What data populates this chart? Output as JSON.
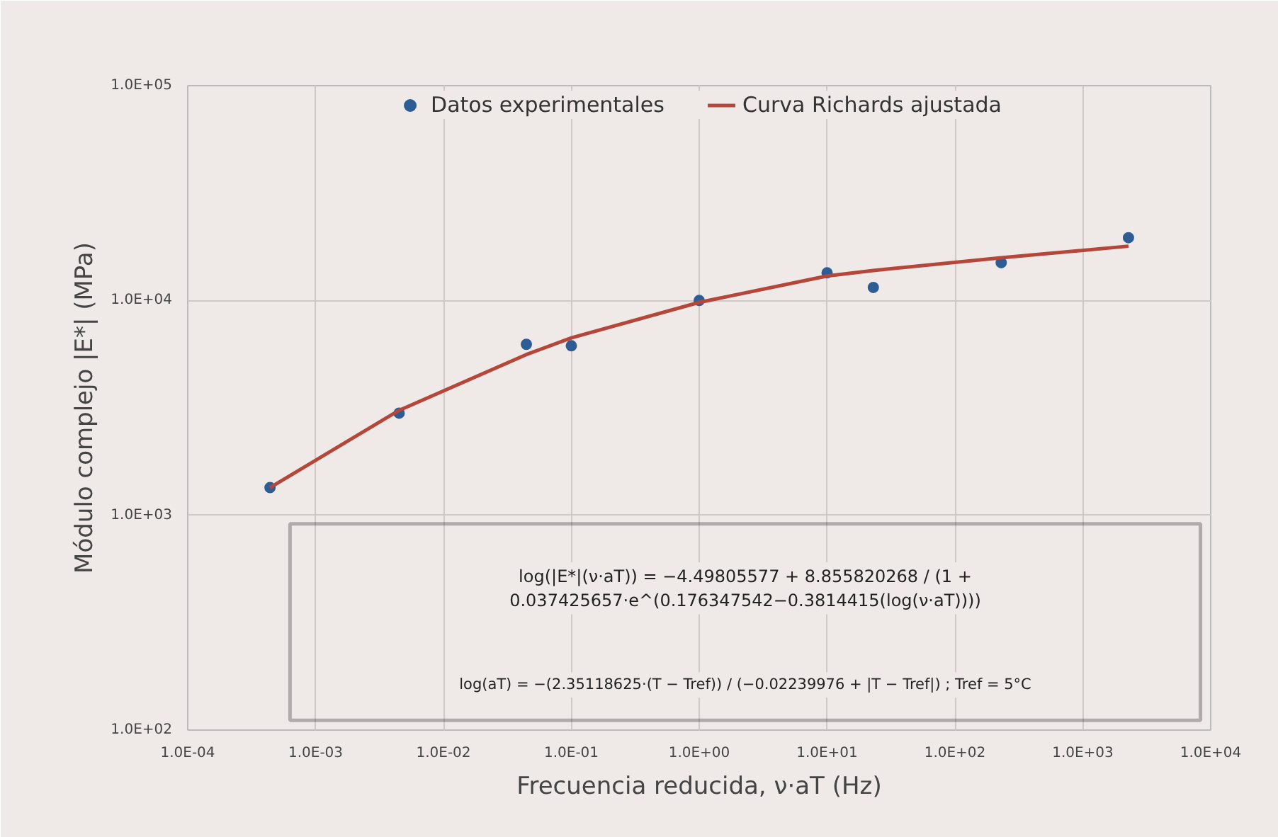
{
  "chart_data": {
    "type": "scatter",
    "xlabel": "Frecuencia reducida, ν·aT (Hz)",
    "ylabel": "Módulo complejo |E*| (MPa)",
    "log": "xy",
    "grid": true,
    "legend": "top",
    "xlim": [
      0.0001,
      10000
    ],
    "ylim": [
      100,
      100000
    ],
    "xticks": [
      {
        "value": 0.0001,
        "label": "1.0E-04"
      },
      {
        "value": 0.001,
        "label": "1.0E-03"
      },
      {
        "value": 0.01,
        "label": "1.0E-02"
      },
      {
        "value": 0.1,
        "label": "1.0E-01"
      },
      {
        "value": 1,
        "label": "1.0E+00"
      },
      {
        "value": 10,
        "label": "1.0E+01"
      },
      {
        "value": 100,
        "label": "1.0E+02"
      },
      {
        "value": 1000,
        "label": "1.0E+03"
      },
      {
        "value": 10000,
        "label": "1.0E+04"
      }
    ],
    "yticks": [
      {
        "value": 100,
        "label": "1.0E+02"
      },
      {
        "value": 1000,
        "label": "1.0E+03"
      },
      {
        "value": 10000,
        "label": "1.0E+04"
      },
      {
        "value": 100000,
        "label": "1.0E+05"
      }
    ],
    "series": [
      {
        "name": "Datos experimentales",
        "marker": "circle",
        "color": "#2e5d95",
        "x": [
          0.00044,
          0.0045,
          0.0445,
          0.1,
          1,
          10,
          23,
          230,
          2275
        ],
        "values": [
          1345,
          2990,
          6250,
          6150,
          10000,
          13450,
          11500,
          15000,
          19600
        ]
      },
      {
        "name": "Curva Richards ajustada",
        "type": "line",
        "line_style": "solid",
        "marker": "none",
        "color": "#b5473a",
        "x": [
          0.00044,
          0.0045,
          0.0445,
          0.1,
          1,
          10,
          23,
          230,
          2275
        ],
        "values": [
          1345,
          3080,
          5600,
          6700,
          9800,
          13000,
          13800,
          15800,
          17900
        ]
      }
    ],
    "annotations": [
      "log(|E*|(ν·aT)) = −4.49805577 + 8.855820268 / (1 + 0.037425657·e^(0.176347542−0.3814415(log(ν·aT))))",
      "log(aT) = −(2.35118625·(T − Tref)) / (−0.02239976 + |T − Tref|) ; Tref = 5°C"
    ]
  }
}
